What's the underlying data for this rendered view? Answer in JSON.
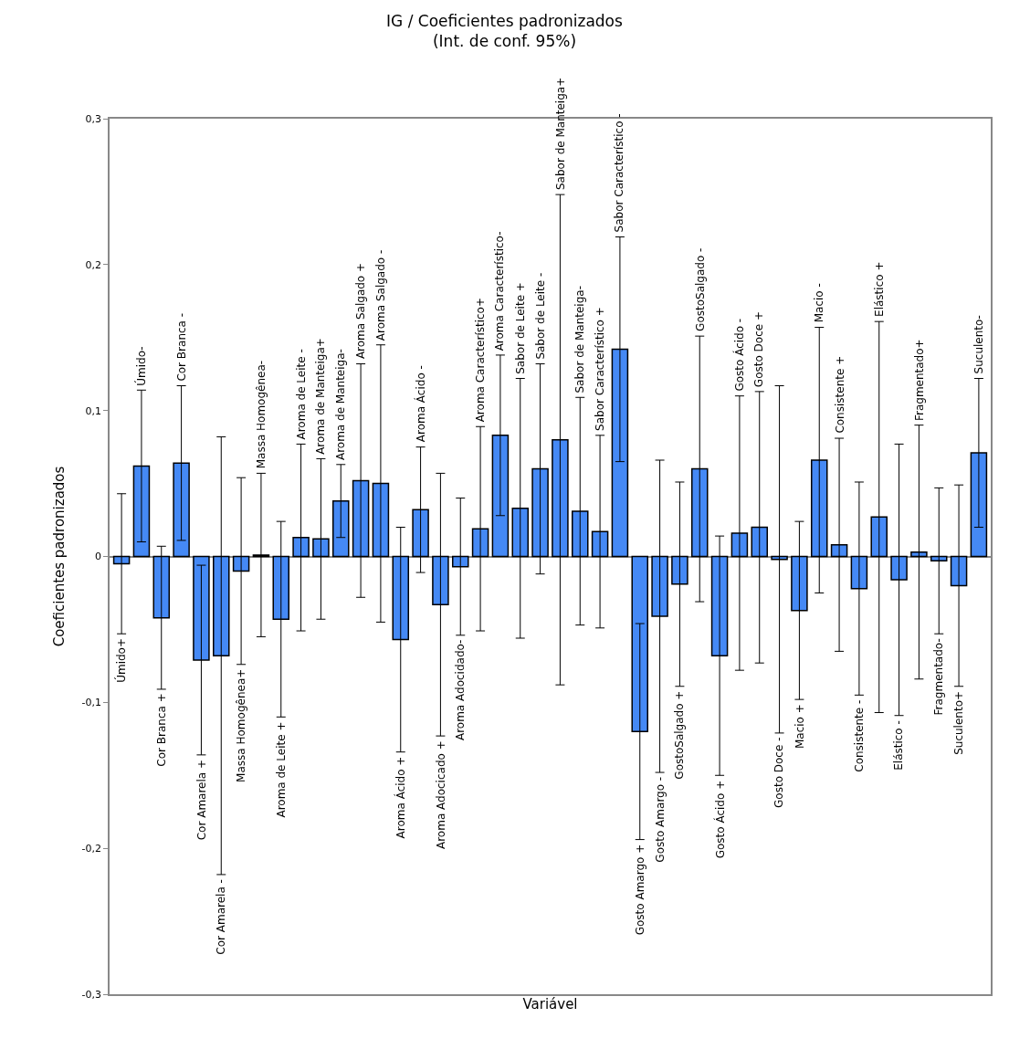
{
  "chart_data": {
    "type": "bar",
    "title": "IG / Coeficientes padronizados\n(Int. de conf. 95%)",
    "xlabel": "Variável",
    "ylabel": "Coeficientes padronizados",
    "categories": [
      "Úmido+",
      "Úmido-",
      "Cor Branca +",
      "Cor Branca -",
      "Cor Amarela +",
      "Cor Amarela -",
      "Massa Homogênea+",
      "Massa Homogênea-",
      "Aroma de Leite +",
      "Aroma de Leite -",
      "Aroma de Manteiga+",
      "Aroma de Manteiga-",
      "Aroma Salgado +",
      "Aroma Salgado -",
      "Aroma Ácido +",
      "Aroma Ácido -",
      "Aroma Adocicado +",
      "Aroma Adocidado-",
      "Aroma Característico+",
      "Aroma Característico-",
      "Sabor de Leite +",
      "Sabor de Leite -",
      "Sabor de Manteiga+",
      "Sabor de Manteiga-",
      "Sabor Característico +",
      "Sabor Característico -",
      "Gosto Amargo +",
      "Gosto Amargo -",
      "GostoSalgado +",
      "GostoSalgado -",
      "Gosto Ácido +",
      "Gosto Ácido -",
      "Gosto Doce +",
      "Gosto Doce -",
      "Macio +",
      "Macio -",
      "Consistente +",
      "Consistente -",
      "Elástico +",
      "Elástico -",
      "Fragmentado+",
      "Fragmentado-",
      "Suculento+",
      "Suculento-"
    ],
    "values": [
      -0.005,
      0.062,
      -0.042,
      0.064,
      -0.071,
      -0.068,
      -0.01,
      0.001,
      -0.043,
      0.013,
      0.012,
      0.038,
      0.052,
      0.05,
      -0.057,
      0.032,
      -0.033,
      -0.007,
      0.019,
      0.083,
      0.033,
      0.06,
      0.08,
      0.031,
      0.017,
      0.142,
      -0.12,
      -0.041,
      -0.019,
      0.06,
      -0.068,
      0.016,
      0.02,
      -0.002,
      -0.037,
      0.066,
      0.008,
      -0.022,
      0.027,
      -0.016,
      0.003,
      -0.003,
      -0.02,
      0.071
    ],
    "errors": [
      0.048,
      0.052,
      0.049,
      0.053,
      0.065,
      0.15,
      0.064,
      0.056,
      0.067,
      0.064,
      0.055,
      0.025,
      0.08,
      0.095,
      0.077,
      0.043,
      0.09,
      0.047,
      0.07,
      0.055,
      0.089,
      0.072,
      0.168,
      0.078,
      0.066,
      0.077,
      0.074,
      0.107,
      0.07,
      0.091,
      0.082,
      0.094,
      0.093,
      0.119,
      0.061,
      0.091,
      0.073,
      0.073,
      0.134,
      0.093,
      0.087,
      0.05,
      0.069,
      0.051
    ],
    "color": "#4589f5",
    "ylim": [
      -0.3,
      0.3
    ],
    "yticks": [
      {
        "value": -0.3,
        "label": "-0,3"
      },
      {
        "value": -0.2,
        "label": "-0,2"
      },
      {
        "value": -0.1,
        "label": "-0,1"
      },
      0,
      {
        "value": 0.1,
        "label": "0,1"
      },
      {
        "value": 0.2,
        "label": "0,2"
      },
      {
        "value": 0.3,
        "label": "0,3"
      }
    ],
    "tick_labels": "y",
    "legend": false
  }
}
